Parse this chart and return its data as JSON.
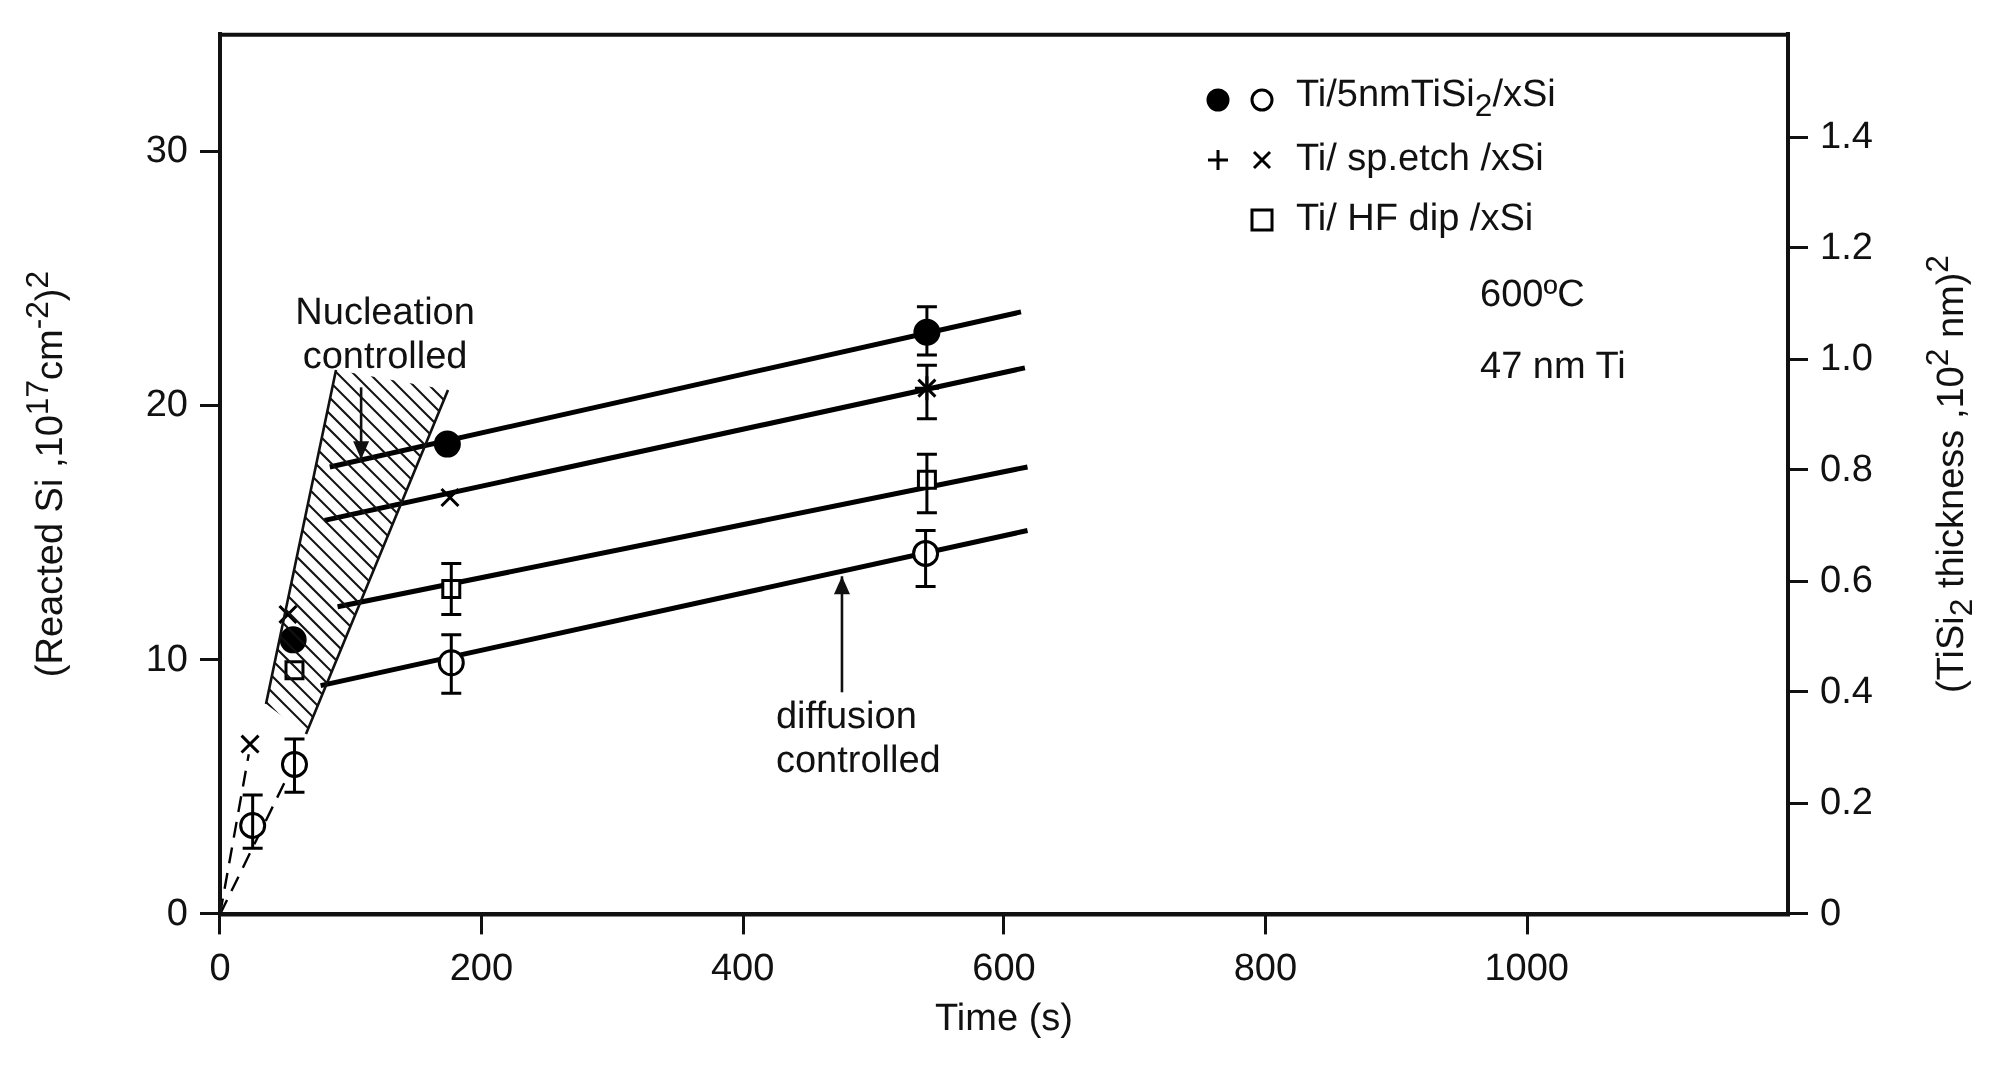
{
  "chart_data": {
    "type": "scatter",
    "xlabel": "Time (s)",
    "ylabel": "(Reacted Si ,10$^{17}$cm$^{-2}$)$^{2}$",
    "y2label": "(TiSi$_{2}$ thickness ,10$^{2}$ nm)$^{2}$",
    "xlim": [
      0,
      1200
    ],
    "xticks": [
      0,
      200,
      400,
      600,
      800,
      1000
    ],
    "ylim": [
      0,
      34.6
    ],
    "yticks": [
      0,
      10,
      20,
      30
    ],
    "y2lim": [
      0,
      1.585
    ],
    "y2ticks": [
      0,
      0.2,
      0.4,
      0.6,
      0.8,
      {
        "value": 1,
        "label": "1.0"
      },
      1.2,
      1.4
    ],
    "legend": "top right",
    "annotations": [
      {
        "text": "Nucleation controlled",
        "x": 108,
        "y": 17.9
      },
      {
        "text": "diffusion controlled",
        "x": 476,
        "y": 13.3
      },
      "600ºC",
      "47 nm Ti"
    ],
    "series": [
      {
        "name": "Ti/5nmTiSi$_{2}$/xSi",
        "marker": "circle",
        "color": "#000000",
        "x": [
          25,
          57,
          177,
          540
        ],
        "values": [
          3.5,
          5.9,
          9.9,
          14.2
        ],
        "errors": [
          [
            2.6,
            4.7
          ],
          [
            4.8,
            6.9
          ],
          [
            8.7,
            11.0
          ],
          [
            12.9,
            15.1
          ]
        ]
      },
      {
        "marker": "circle",
        "color": "#000000",
        "x": [
          56,
          174,
          541
        ],
        "values": [
          10.8,
          18.5,
          22.9
        ],
        "errors": [
          null,
          null,
          [
            22.0,
            23.9
          ]
        ]
      },
      {
        "name": "Ti/ sp.etch /xSi",
        "marker": "cross",
        "color": "#000000",
        "x": [
          23,
          52,
          176,
          541
        ],
        "values": [
          6.7,
          11.8,
          16.4,
          20.7
        ],
        "errors": [
          null,
          null,
          null,
          [
            19.5,
            21.6
          ]
        ]
      },
      {
        "marker": "plus",
        "color": "#000000",
        "x": [
          541
        ],
        "values": [
          20.7
        ]
      },
      {
        "name": "Ti/ HF dip /xSi",
        "marker": "square",
        "color": "#000000",
        "x": [
          57,
          177,
          541
        ],
        "values": [
          9.6,
          12.8,
          17.1
        ],
        "errors": [
          null,
          [
            11.8,
            13.8
          ],
          [
            15.8,
            18.1
          ]
        ]
      },
      {
        "type": "line",
        "marker": "none",
        "color": "#000000",
        "x": [
          84,
          613
        ],
        "values": [
          17.6,
          23.7
        ]
      },
      {
        "type": "line",
        "marker": "none",
        "color": "#000000",
        "x": [
          80,
          616
        ],
        "values": [
          15.5,
          21.5
        ]
      },
      {
        "type": "line",
        "marker": "none",
        "color": "#000000",
        "x": [
          90,
          618
        ],
        "values": [
          12.1,
          17.6
        ]
      },
      {
        "type": "line",
        "marker": "none",
        "color": "#000000",
        "x": [
          77,
          618
        ],
        "values": [
          9.0,
          15.1
        ]
      },
      {
        "type": "line",
        "marker": "none",
        "line_style": "dashed",
        "color": "#000000",
        "x": [
          0,
          60
        ],
        "values": [
          0,
          6.3
        ]
      },
      {
        "type": "line",
        "marker": "none",
        "line_style": "dashed",
        "color": "#000000",
        "x": [
          0,
          22
        ],
        "values": [
          0,
          6.3
        ]
      }
    ]
  }
}
